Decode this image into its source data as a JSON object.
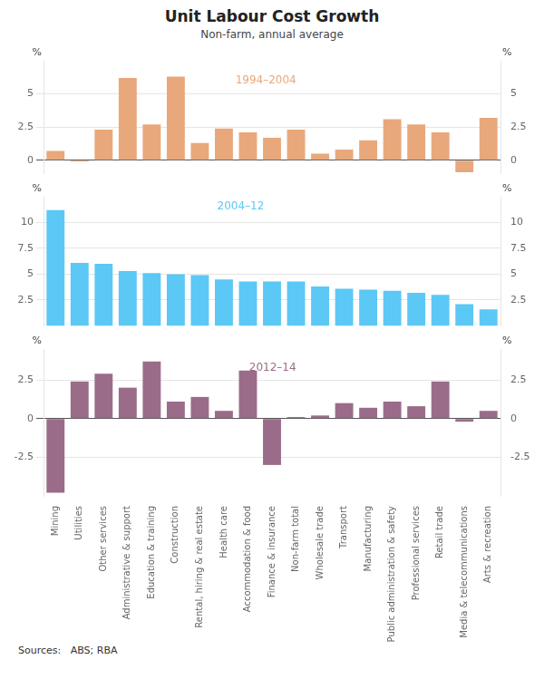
{
  "chart_data": [
    {
      "type": "bar",
      "title": "Unit Labour Cost Growth",
      "subtitle": "Non-farm, annual average",
      "categories": [
        "Mining",
        "Utilities",
        "Other services",
        "Administrative & support",
        "Education & training",
        "Construction",
        "Rental, hiring & real estate",
        "Health care",
        "Accommodation & food",
        "Finance & insurance",
        "Non-farm total",
        "Wholesale trade",
        "Transport",
        "Manufacturing",
        "Public administration & safety",
        "Professional services",
        "Retail trade",
        "Media & telecommunications",
        "Arts & recreation"
      ],
      "values": [
        0.7,
        -0.1,
        2.3,
        6.2,
        2.7,
        6.3,
        1.3,
        2.4,
        2.1,
        1.7,
        2.3,
        0.5,
        0.8,
        1.5,
        3.1,
        2.7,
        2.1,
        -0.9,
        3.2
      ],
      "color": "#E8A87C",
      "annotations": [
        "1994–2004"
      ],
      "ylabel": "%",
      "y2label": "%",
      "ylim": [
        -1.0,
        7.5
      ],
      "yticks": [
        0,
        2.5,
        5
      ],
      "y2lim": [
        -1.0,
        7.5
      ],
      "y2ticks": [
        0,
        2.5,
        5
      ],
      "grid": true,
      "tick_labels": "y"
    },
    {
      "type": "bar",
      "categories": [
        "Mining",
        "Utilities",
        "Other services",
        "Administrative & support",
        "Education & training",
        "Construction",
        "Rental, hiring & real estate",
        "Health care",
        "Accommodation & food",
        "Finance & insurance",
        "Non-farm total",
        "Wholesale trade",
        "Transport",
        "Manufacturing",
        "Public administration & safety",
        "Professional services",
        "Retail trade",
        "Media & telecommunications",
        "Arts & recreation"
      ],
      "values": [
        11.2,
        6.1,
        6.0,
        5.3,
        5.1,
        5.0,
        4.9,
        4.5,
        4.3,
        4.3,
        4.3,
        3.8,
        3.6,
        3.5,
        3.4,
        3.2,
        3.0,
        2.1,
        1.6
      ],
      "color": "#5BC8F5",
      "annotations": [
        "2004–12"
      ],
      "ylabel": "%",
      "y2label": "%",
      "ylim": [
        0.0,
        12.5
      ],
      "yticks": [
        2.5,
        5,
        7.5,
        10
      ],
      "y2lim": [
        0.0,
        12.5
      ],
      "y2ticks": [
        2.5,
        5,
        7.5,
        10
      ],
      "grid": true,
      "tick_labels": "y"
    },
    {
      "type": "bar",
      "categories": [
        "Mining",
        "Utilities",
        "Other services",
        "Administrative & support",
        "Education & training",
        "Construction",
        "Rental, hiring & real estate",
        "Health care",
        "Accommodation & food",
        "Finance & insurance",
        "Non-farm total",
        "Wholesale trade",
        "Transport",
        "Manufacturing",
        "Public administration & safety",
        "Professional services",
        "Retail trade",
        "Media & telecommunications",
        "Arts & recreation"
      ],
      "values": [
        -4.8,
        2.4,
        2.9,
        2.0,
        3.7,
        1.1,
        1.4,
        0.5,
        3.1,
        -3.0,
        0.1,
        0.2,
        1.0,
        0.7,
        1.1,
        0.8,
        2.4,
        -0.2,
        0.5
      ],
      "color": "#9B6B8A",
      "annotations": [
        "2012–14",
        "Sources:   ABS; RBA"
      ],
      "ylabel": "%",
      "y2label": "%",
      "ylim": [
        -5.0,
        4.5
      ],
      "yticks": [
        -2.5,
        0,
        2.5
      ],
      "y2lim": [
        -5.0,
        4.5
      ],
      "y2ticks": [
        -2.5,
        0,
        2.5
      ],
      "grid": true
    }
  ]
}
